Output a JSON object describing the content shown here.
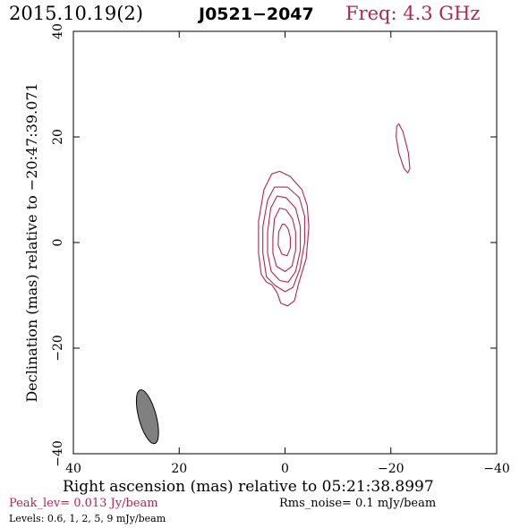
{
  "header": {
    "date": "2015.10.19(2)",
    "source": "J0521−2047",
    "freq": "Freq: 4.3 GHz"
  },
  "chart_data": {
    "type": "contour",
    "xlabel": "Right ascension (mas) relative to 05:21:38.8997",
    "ylabel": "Declination (mas) relative to −20:47:39.071",
    "xlim": [
      40,
      -40
    ],
    "ylim": [
      -40,
      40
    ],
    "x_ticks": [
      40,
      20,
      0,
      -20,
      -40
    ],
    "x_tick_labels": [
      "40",
      "20",
      "0",
      "−20",
      "−40"
    ],
    "y_ticks": [
      -40,
      -20,
      0,
      20,
      40
    ],
    "y_tick_labels": [
      "−40",
      "−20",
      "0",
      "20",
      "40"
    ],
    "contour_levels_mJy": [
      0.6,
      1,
      2,
      5,
      9
    ],
    "main_component": {
      "contours": [
        {
          "level": 0.6,
          "points": [
            [
              2.5,
              13
            ],
            [
              4,
              10
            ],
            [
              5,
              4
            ],
            [
              5,
              -2
            ],
            [
              4.5,
              -6
            ],
            [
              3.5,
              -7.5
            ],
            [
              2.5,
              -8
            ],
            [
              1.5,
              -9.5
            ],
            [
              0.8,
              -11.5
            ],
            [
              -0.5,
              -12
            ],
            [
              -1.8,
              -11
            ],
            [
              -2.5,
              -8
            ],
            [
              -4,
              -3
            ],
            [
              -4.5,
              3
            ],
            [
              -4.2,
              7
            ],
            [
              -3.2,
              10
            ],
            [
              -1,
              12.5
            ],
            [
              1,
              13.5
            ]
          ]
        },
        {
          "level": 1,
          "points": [
            [
              2,
              10.5
            ],
            [
              3.3,
              8
            ],
            [
              4.2,
              3
            ],
            [
              4.2,
              -2
            ],
            [
              3.5,
              -6.5
            ],
            [
              1.8,
              -8.2
            ],
            [
              0,
              -9.3
            ],
            [
              -1.5,
              -8.5
            ],
            [
              -2.8,
              -5
            ],
            [
              -3.7,
              0
            ],
            [
              -3.7,
              5
            ],
            [
              -2.7,
              8.5
            ],
            [
              -0.5,
              10.5
            ]
          ]
        },
        {
          "level": 2,
          "points": [
            [
              1.5,
              8.8
            ],
            [
              2.7,
              6.5
            ],
            [
              3.3,
              2
            ],
            [
              3.3,
              -2
            ],
            [
              2.6,
              -5.5
            ],
            [
              1,
              -7.2
            ],
            [
              -0.6,
              -7.5
            ],
            [
              -2,
              -5.5
            ],
            [
              -2.9,
              -1.5
            ],
            [
              -2.9,
              3
            ],
            [
              -2,
              6.5
            ],
            [
              -0.2,
              8.5
            ]
          ]
        },
        {
          "level": 5,
          "points": [
            [
              1,
              6.5
            ],
            [
              2,
              4.5
            ],
            [
              2.3,
              1
            ],
            [
              2.3,
              -2
            ],
            [
              1.6,
              -4.5
            ],
            [
              0,
              -5.5
            ],
            [
              -1.3,
              -4.5
            ],
            [
              -2,
              -1.5
            ],
            [
              -2,
              2
            ],
            [
              -1.4,
              4.5
            ],
            [
              -0.2,
              6.2
            ]
          ]
        },
        {
          "level": 9,
          "points": [
            [
              0.5,
              3.5
            ],
            [
              1.2,
              2
            ],
            [
              1.3,
              -0.5
            ],
            [
              0.6,
              -2.2
            ],
            [
              -0.4,
              -2.5
            ],
            [
              -1,
              -1
            ],
            [
              -1,
              1
            ],
            [
              -0.6,
              2.6
            ],
            [
              0,
              3.4
            ]
          ]
        }
      ]
    },
    "secondary_component": {
      "level": 0.6,
      "points": [
        [
          -21.5,
          22.5
        ],
        [
          -22.3,
          21
        ],
        [
          -23.3,
          17
        ],
        [
          -23.6,
          14
        ],
        [
          -23.2,
          13.2
        ],
        [
          -22.5,
          14
        ],
        [
          -21.5,
          17
        ],
        [
          -21,
          20
        ],
        [
          -21.1,
          22
        ]
      ]
    },
    "beam": {
      "center": [
        26,
        -33
      ],
      "major_mas": 10.5,
      "minor_mas": 3.3,
      "pa_deg": -15,
      "fill": "#808080"
    },
    "contour_color": "#b5244f"
  },
  "footer": {
    "peak": "Peak_lev=  0.013 Jy/beam",
    "rms": "Rms_noise=  0.1 mJy/beam",
    "levels": "Levels: 0.6,   1,   2,   5,   9 mJy/beam"
  },
  "colors": {
    "accent": "#b5244f",
    "text": "#000000",
    "beam": "#808080"
  }
}
